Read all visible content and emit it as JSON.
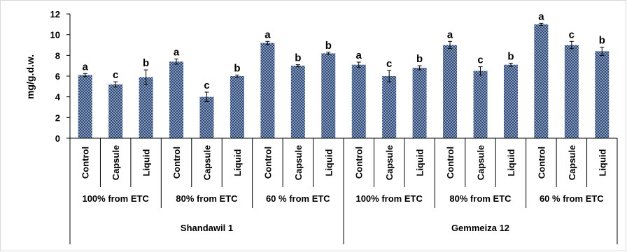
{
  "chart_data": {
    "type": "bar",
    "ylabel": "mg/g.d.w.",
    "ylim": [
      0,
      12
    ],
    "yticks": [
      "0",
      "2",
      "4",
      "6",
      "8",
      "10",
      "12"
    ],
    "categories": [
      "Control",
      "Capsule",
      "Liquid",
      "Control",
      "Capsule",
      "Liquid",
      "Control",
      "Capsule",
      "Liquid",
      "Control",
      "Capsule",
      "Liquid",
      "Control",
      "Capsule",
      "Liquid",
      "Control",
      "Capsule",
      "Liquid"
    ],
    "values": [
      6.1,
      5.2,
      5.9,
      7.4,
      4.0,
      6.0,
      9.2,
      7.0,
      8.2,
      7.1,
      6.0,
      6.8,
      9.0,
      6.5,
      7.1,
      11.0,
      9.0,
      8.4
    ],
    "errors": [
      0.15,
      0.25,
      0.7,
      0.25,
      0.45,
      0.1,
      0.15,
      0.1,
      0.1,
      0.25,
      0.55,
      0.2,
      0.35,
      0.4,
      0.15,
      0.1,
      0.35,
      0.4
    ],
    "significance": [
      "a",
      "c",
      "b",
      "a",
      "c",
      "b",
      "a",
      "b",
      "b",
      "a",
      "c",
      "b",
      "a",
      "c",
      "b",
      "a",
      "c",
      "b"
    ],
    "groups": [
      "100% from ETC",
      "80% from ETC",
      "60 % from ETC",
      "100% from ETC",
      "80% from ETC",
      "60 % from ETC"
    ],
    "varieties": [
      "Shandawil 1",
      "Gemmeiza 12"
    ],
    "bar_color": "#2e4a78",
    "bar_dot_color": "#c9d4e6",
    "grid": false,
    "legend": "none"
  }
}
